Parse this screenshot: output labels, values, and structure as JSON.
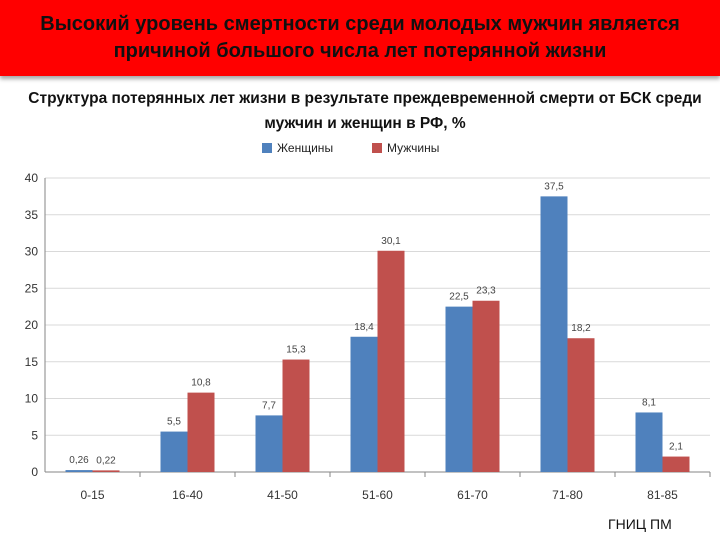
{
  "slide": {
    "banner_title": "Высокий уровень смертности среди молодых мужчин является причиной большого числа лет потерянной жизни",
    "source": "ГНИЦ ПМ"
  },
  "colors": {
    "banner": "#ff0000",
    "women": "#4f81bd",
    "men": "#c0504d"
  },
  "chart_data": {
    "type": "bar",
    "title": "Структура потерянных лет жизни в результате преждевременной смерти от БСК среди мужчин и женщин в РФ, %",
    "xlabel": "",
    "ylabel": "",
    "ylim": [
      0,
      40
    ],
    "yticks": [
      0,
      5,
      10,
      15,
      20,
      25,
      30,
      35,
      40
    ],
    "grid": true,
    "legend_position": "top",
    "categories": [
      "0-15",
      "16-40",
      "41-50",
      "51-60",
      "61-70",
      "71-80",
      "81-85"
    ],
    "series": [
      {
        "name": "Женщины",
        "color": "#4f81bd",
        "values": [
          0.26,
          5.5,
          7.7,
          18.4,
          22.5,
          37.5,
          8.1
        ],
        "labels": [
          "0,26",
          "5,5",
          "7,7",
          "18,4",
          "22,5",
          "37,5",
          "8,1"
        ]
      },
      {
        "name": "Мужчины",
        "color": "#c0504d",
        "values": [
          0.22,
          10.8,
          15.3,
          30.1,
          23.3,
          18.2,
          2.1
        ],
        "labels": [
          "0,22",
          "10,8",
          "15,3",
          "30,1",
          "23,3",
          "18,2",
          "2,1"
        ]
      }
    ]
  }
}
